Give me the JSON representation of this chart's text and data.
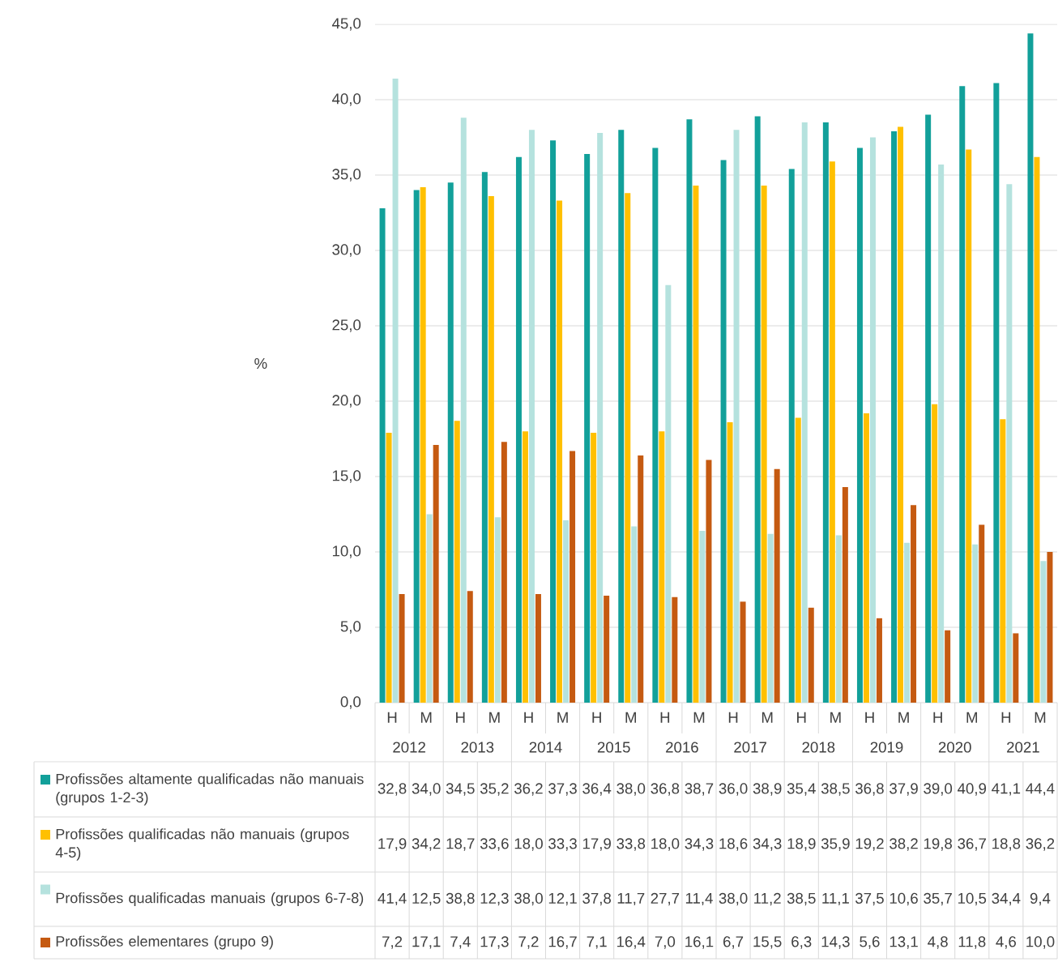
{
  "chart_data": {
    "type": "bar",
    "ylabel": "%",
    "categories": [
      "H",
      "M",
      "H",
      "M",
      "H",
      "M",
      "H",
      "M",
      "H",
      "M",
      "H",
      "M",
      "H",
      "M",
      "H",
      "M",
      "H",
      "M",
      "H",
      "M"
    ],
    "annotations": [
      "2012",
      "2013",
      "2014",
      "2015",
      "2016",
      "2017",
      "2018",
      "2019",
      "2020",
      "2021"
    ],
    "series": [
      {
        "name": "Profissões altamente qualificadas não manuais  (grupos 1-2-3)",
        "color": "#12a09a",
        "values": [
          32.8,
          34.0,
          34.5,
          35.2,
          36.2,
          37.3,
          36.4,
          38.0,
          36.8,
          38.7,
          36.0,
          38.9,
          35.4,
          38.5,
          36.8,
          37.9,
          39.0,
          40.9,
          41.1,
          44.4
        ],
        "value_labels": [
          "32,8",
          "34,0",
          "34,5",
          "35,2",
          "36,2",
          "37,3",
          "36,4",
          "38,0",
          "36,8",
          "38,7",
          "36,0",
          "38,9",
          "35,4",
          "38,5",
          "36,8",
          "37,9",
          "39,0",
          "40,9",
          "41,1",
          "44,4"
        ]
      },
      {
        "name": "Profissões qualificadas não manuais (grupos 4-5)",
        "color": "#ffc000",
        "values": [
          17.9,
          34.2,
          18.7,
          33.6,
          18.0,
          33.3,
          17.9,
          33.8,
          18.0,
          34.3,
          18.6,
          34.3,
          18.9,
          35.9,
          19.2,
          38.2,
          19.8,
          36.7,
          18.8,
          36.2
        ],
        "value_labels": [
          "17,9",
          "34,2",
          "18,7",
          "33,6",
          "18,0",
          "33,3",
          "17,9",
          "33,8",
          "18,0",
          "34,3",
          "18,6",
          "34,3",
          "18,9",
          "35,9",
          "19,2",
          "38,2",
          "19,8",
          "36,7",
          "18,8",
          "36,2"
        ]
      },
      {
        "name": "Profissões qualificadas manuais (grupos 6-7-8)",
        "color": "#b5e2de",
        "values": [
          41.4,
          12.5,
          38.8,
          12.3,
          38.0,
          12.1,
          37.8,
          11.7,
          27.7,
          11.4,
          38.0,
          11.2,
          38.5,
          11.1,
          37.5,
          10.6,
          35.7,
          10.5,
          34.4,
          9.4
        ],
        "value_labels": [
          "41,4",
          "12,5",
          "38,8",
          "12,3",
          "38,0",
          "12,1",
          "37,8",
          "11,7",
          "27,7",
          "11,4",
          "38,0",
          "11,2",
          "38,5",
          "11,1",
          "37,5",
          "10,6",
          "35,7",
          "10,5",
          "34,4",
          "9,4"
        ]
      },
      {
        "name": "Profissões elementares (grupo 9)",
        "color": "#c55a11",
        "values": [
          7.2,
          17.1,
          7.4,
          17.3,
          7.2,
          16.7,
          7.1,
          16.4,
          7.0,
          16.1,
          6.7,
          15.5,
          6.3,
          14.3,
          5.6,
          13.1,
          4.8,
          11.8,
          4.6,
          10.0
        ],
        "value_labels": [
          "7,2",
          "17,1",
          "7,4",
          "17,3",
          "7,2",
          "16,7",
          "7,1",
          "16,4",
          "7,0",
          "16,1",
          "6,7",
          "15,5",
          "6,3",
          "14,3",
          "5,6",
          "13,1",
          "4,8",
          "11,8",
          "4,6",
          "10,0"
        ]
      }
    ],
    "ylim": [
      0,
      45
    ],
    "yticks": [
      {
        "value": 0,
        "label": "0,0"
      },
      {
        "value": 5,
        "label": "5,0"
      },
      {
        "value": 10,
        "label": "10,0"
      },
      {
        "value": 15,
        "label": "15,0"
      },
      {
        "value": 20,
        "label": "20,0"
      },
      {
        "value": 25,
        "label": "25,0"
      },
      {
        "value": 30,
        "label": "30,0"
      },
      {
        "value": 35,
        "label": "35,0"
      },
      {
        "value": 40,
        "label": "40,0"
      },
      {
        "value": 45,
        "label": "45,0"
      }
    ],
    "grid": "y",
    "legend": "bottom"
  }
}
